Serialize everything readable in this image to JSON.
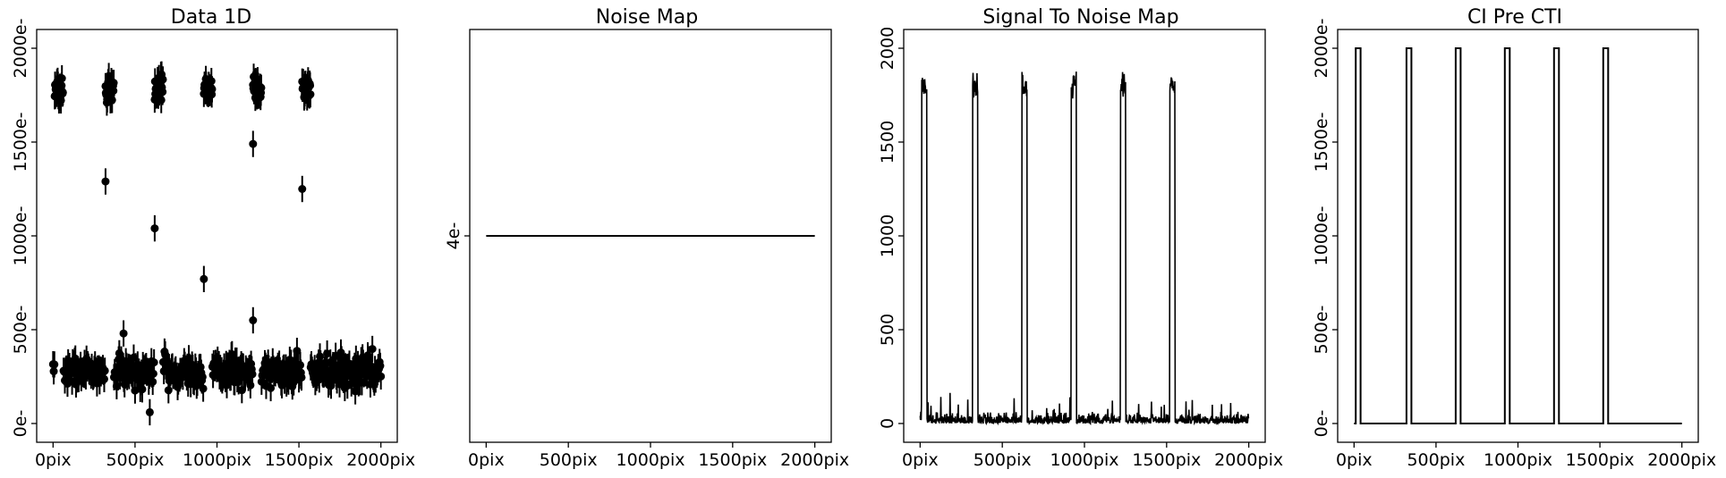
{
  "chart_data": [
    {
      "type": "scatter",
      "title": "Data 1D",
      "xlabel": "",
      "ylabel": "",
      "xlim": [
        -100,
        2100
      ],
      "ylim": [
        -100,
        2100
      ],
      "xticks": [
        "0pix",
        "500pix",
        "1000pix",
        "1500pix",
        "2000pix"
      ],
      "yticks": [
        "0e-",
        "500e-",
        "1000e-",
        "1500e-",
        "2000e-"
      ],
      "error_bars": true,
      "background_level": 280,
      "background_spread": 120,
      "error_size": 70,
      "injection_regions": [
        [
          10,
          60
        ],
        [
          320,
          370
        ],
        [
          620,
          670
        ],
        [
          920,
          970
        ],
        [
          1220,
          1270
        ],
        [
          1520,
          1570
        ]
      ],
      "injection_level": 1780,
      "injection_spread": 90,
      "trail_points": [
        {
          "x": 320,
          "y": 1290
        },
        {
          "x": 620,
          "y": 1040
        },
        {
          "x": 920,
          "y": 770
        },
        {
          "x": 1220,
          "y": 1490
        },
        {
          "x": 1220,
          "y": 550
        },
        {
          "x": 1520,
          "y": 1250
        },
        {
          "x": 430,
          "y": 480
        },
        {
          "x": 590,
          "y": 60
        }
      ],
      "color": "#000000"
    },
    {
      "type": "line",
      "title": "Noise Map",
      "xlabel": "",
      "ylabel": "",
      "xlim": [
        -100,
        2100
      ],
      "xticks": [
        "0pix",
        "500pix",
        "1000pix",
        "1500pix",
        "2000pix"
      ],
      "yticks": [
        "4e-"
      ],
      "x": [
        0,
        2000
      ],
      "y": [
        4,
        4
      ],
      "color": "#000000"
    },
    {
      "type": "line",
      "title": "Signal To Noise Map",
      "xlabel": "",
      "ylabel": "",
      "xlim": [
        -100,
        2100
      ],
      "ylim": [
        -100,
        2100
      ],
      "xticks": [
        "0pix",
        "500pix",
        "1000pix",
        "1500pix",
        "2000pix"
      ],
      "yticks": [
        "0",
        "500",
        "1000",
        "1500",
        "2000"
      ],
      "baseline_level": 40,
      "baseline_spread": 80,
      "injection_regions": [
        [
          10,
          40
        ],
        [
          320,
          350
        ],
        [
          620,
          650
        ],
        [
          920,
          950
        ],
        [
          1220,
          1250
        ],
        [
          1520,
          1550
        ]
      ],
      "injection_level": 1800,
      "injection_spread": 120,
      "color": "#000000"
    },
    {
      "type": "line",
      "title": "CI Pre CTI",
      "xlabel": "",
      "ylabel": "",
      "xlim": [
        -100,
        2100
      ],
      "ylim": [
        -100,
        2100
      ],
      "xticks": [
        "0pix",
        "500pix",
        "1000pix",
        "1500pix",
        "2000pix"
      ],
      "yticks": [
        "0e-",
        "500e-",
        "1000e-",
        "1500e-",
        "2000e-"
      ],
      "step_x": [
        0,
        10,
        10,
        40,
        40,
        320,
        320,
        350,
        350,
        620,
        620,
        650,
        650,
        920,
        920,
        950,
        950,
        1220,
        1220,
        1250,
        1250,
        1520,
        1520,
        1550,
        1550,
        2000
      ],
      "step_y": [
        0,
        0,
        2000,
        2000,
        0,
        0,
        2000,
        2000,
        0,
        0,
        2000,
        2000,
        0,
        0,
        2000,
        2000,
        0,
        0,
        2000,
        2000,
        0,
        0,
        2000,
        2000,
        0,
        0
      ],
      "color": "#000000"
    }
  ]
}
